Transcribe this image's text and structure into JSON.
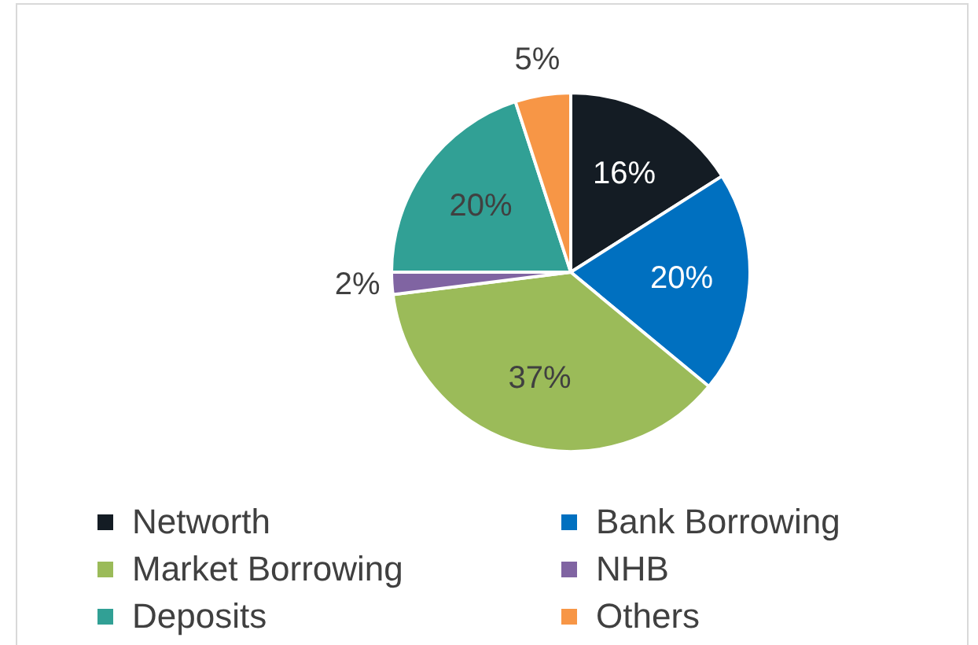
{
  "chart_data": {
    "type": "pie",
    "categories": [
      "Networth",
      "Bank Borrowing",
      "Market Borrowing",
      "NHB",
      "Deposits",
      "Others"
    ],
    "values": [
      16,
      20,
      37,
      2,
      20,
      5
    ],
    "value_labels": [
      "16%",
      "20%",
      "37%",
      "2%",
      "20%",
      "5%"
    ],
    "colors": [
      "#141c24",
      "#0070c0",
      "#9bbb59",
      "#8064a2",
      "#31a095",
      "#f79646"
    ],
    "legend": "bottom"
  }
}
